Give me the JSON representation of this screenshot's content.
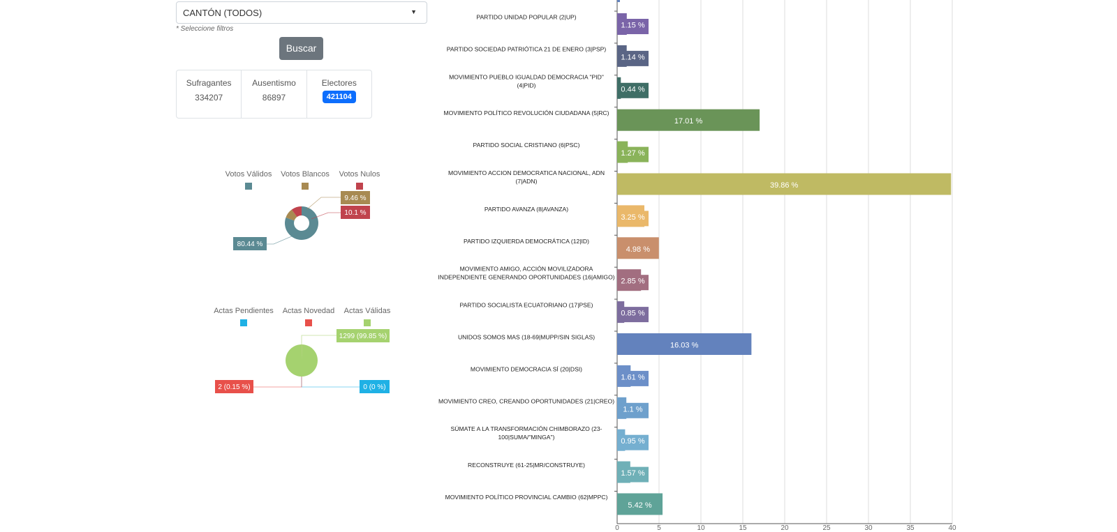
{
  "filters": {
    "canton_select": "CANTÓN (TODOS)",
    "hint": "* Seleccione filtros",
    "search_button": "Buscar"
  },
  "stats": {
    "sufragantes": {
      "label": "Sufragantes",
      "value": "334207"
    },
    "ausentismo": {
      "label": "Ausentismo",
      "value": "86897"
    },
    "electores": {
      "label": "Electores",
      "value": "421104"
    }
  },
  "chart_data": [
    {
      "type": "pie",
      "categories": [
        "Votos Válidos",
        "Votos Blancos",
        "Votos Nulos"
      ],
      "values": [
        80.44,
        9.46,
        10.1
      ],
      "labels": [
        "80.44 %",
        "9.46 %",
        "10.1 %"
      ],
      "colors": [
        "#5b8a93",
        "#a88a52",
        "#c0434d"
      ],
      "legend": "top"
    },
    {
      "type": "pie",
      "categories": [
        "Actas Pendientes",
        "Actas Novedad",
        "Actas Válidas"
      ],
      "values": [
        0,
        0.15,
        99.85
      ],
      "labels": [
        "0 (0 %)",
        "2 (0.15 %)",
        "1299 (99.85 %)"
      ],
      "colors": [
        "#1fb1e5",
        "#e8504a",
        "#a5d26f"
      ],
      "legend": "top"
    },
    {
      "type": "bar",
      "orientation": "horizontal",
      "categories": [
        "PARTIDO UNIDAD POPULAR (2|UP)",
        "PARTIDO SOCIEDAD PATRIÓTICA 21 DE ENERO (3|PSP)",
        "MOVIMIENTO PUEBLO IGUALDAD DEMOCRACIA \"PID\" (4|PID)",
        "MOVIMIENTO POLÍTICO REVOLUCIÓN CIUDADANA (5|RC)",
        "PARTIDO SOCIAL CRISTIANO (6|PSC)",
        "MOVIMIENTO ACCION DEMOCRATICA NACIONAL, ADN (7|ADN)",
        "PARTIDO AVANZA (8|AVANZA)",
        "PARTIDO IZQUIERDA DEMOCRÁTICA (12|ID)",
        "MOVIMIENTO AMIGO, ACCIÓN MOVILIZADORA INDEPENDIENTE GENERANDO OPORTUNIDADES (16|AMIGO)",
        "PARTIDO SOCIALISTA ECUATORIANO (17|PSE)",
        "UNIDOS SOMOS MAS (18-69|MUPP/SIN SIGLAS)",
        "MOVIMIENTO DEMOCRACIA SÍ (20|DSI)",
        "MOVIMIENTO CREO, CREANDO OPORTUNIDADES (21|CREO)",
        "SÚMATE A LA TRANSFORMACIÓN CHIMBORAZO (23-100|SUMA/\"MINGA\")",
        "RECONSTRUYE (61-25|MR/CONSTRUYE)",
        "MOVIMIENTO POLÍTICO PROVINCIAL CAMBIO (62|MPPC)"
      ],
      "label_lines": [
        [
          "PARTIDO UNIDAD POPULAR (2|UP)"
        ],
        [
          "PARTIDO SOCIEDAD PATRIÓTICA 21 DE ENERO (3|PSP)"
        ],
        [
          "MOVIMIENTO PUEBLO IGUALDAD DEMOCRACIA \"PID\"",
          "(4|PID)"
        ],
        [
          "MOVIMIENTO POLÍTICO REVOLUCIÓN CIUDADANA (5|RC)"
        ],
        [
          "PARTIDO SOCIAL CRISTIANO (6|PSC)"
        ],
        [
          "MOVIMIENTO ACCION DEMOCRATICA NACIONAL, ADN",
          "(7|ADN)"
        ],
        [
          "PARTIDO AVANZA (8|AVANZA)"
        ],
        [
          "PARTIDO IZQUIERDA DEMOCRÁTICA (12|ID)"
        ],
        [
          "MOVIMIENTO AMIGO, ACCIÓN MOVILIZADORA",
          "INDEPENDIENTE GENERANDO OPORTUNIDADES (16|AMIGO)"
        ],
        [
          "PARTIDO SOCIALISTA ECUATORIANO (17|PSE)"
        ],
        [
          "UNIDOS SOMOS MAS (18-69|MUPP/SIN SIGLAS)"
        ],
        [
          "MOVIMIENTO DEMOCRACIA SÍ (20|DSI)"
        ],
        [
          "MOVIMIENTO CREO, CREANDO OPORTUNIDADES (21|CREO)"
        ],
        [
          "SÚMATE A LA TRANSFORMACIÓN CHIMBORAZO (23-",
          "100|SUMA/\"MINGA\")"
        ],
        [
          "RECONSTRUYE (61-25|MR/CONSTRUYE)"
        ],
        [
          "MOVIMIENTO POLÍTICO PROVINCIAL CAMBIO (62|MPPC)"
        ]
      ],
      "values": [
        1.15,
        1.14,
        0.44,
        17.01,
        1.27,
        39.86,
        3.25,
        4.98,
        2.85,
        0.85,
        16.03,
        1.61,
        1.1,
        0.95,
        1.57,
        5.42
      ],
      "labels": [
        "1.15 %",
        "1.14 %",
        "0.44 %",
        "17.01 %",
        "1.27 %",
        "39.86 %",
        "3.25 %",
        "4.98 %",
        "2.85 %",
        "0.85 %",
        "16.03 %",
        "1.61 %",
        "1.1 %",
        "0.95 %",
        "1.57 %",
        "5.42 %"
      ],
      "colors": [
        "#7a64a8",
        "#5a6585",
        "#3f6e66",
        "#6a9458",
        "#8ab35a",
        "#bfba63",
        "#eab86a",
        "#c98f6c",
        "#a26e80",
        "#7d6d9e",
        "#6382bd",
        "#6c8fc8",
        "#6ea0cc",
        "#75afd0",
        "#6fb0b7",
        "#5fa398"
      ],
      "xticks": [
        0,
        5,
        10,
        15,
        20,
        25,
        30,
        35,
        40
      ],
      "xlim": [
        0,
        40
      ],
      "grid": true
    }
  ]
}
